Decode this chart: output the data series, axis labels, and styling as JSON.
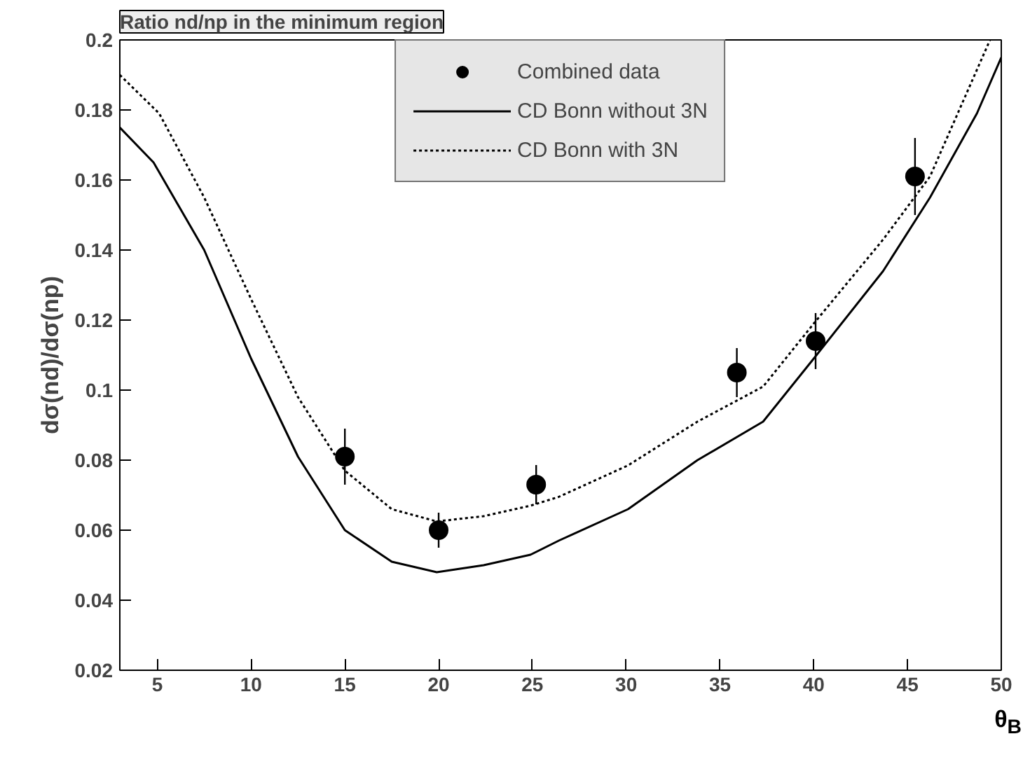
{
  "chart_data": {
    "type": "scatter",
    "title": "Ratio nd/np in the minimum region",
    "xlabel": "θ$_{B}$",
    "ylabel": "dσ(nd)/dσ(np)",
    "xlim": [
      3,
      50
    ],
    "ylim": [
      0.02,
      0.2
    ],
    "xticks": [
      5,
      10,
      15,
      20,
      25,
      30,
      35,
      40,
      45,
      50
    ],
    "yticks": [
      0.02,
      0.04,
      0.06,
      0.08,
      0.1,
      0.12,
      0.14,
      0.16,
      0.18,
      0.2
    ],
    "grid": false,
    "legend": "top",
    "series": [
      {
        "name": "Combined data",
        "type": "scatter",
        "marker": "circle",
        "color": "#000000",
        "x": [
          15,
          20,
          25.2,
          35.9,
          40.1,
          45.4
        ],
        "values": [
          0.081,
          0.06,
          0.073,
          0.105,
          0.114,
          0.161
        ],
        "errors": [
          0.008,
          0.005,
          0.0056,
          0.007,
          0.008,
          0.011
        ]
      },
      {
        "name": "CD Bonn without 3N",
        "type": "line",
        "line_style": "solid",
        "color": "#000000",
        "x": [
          3,
          4.8,
          7.5,
          10,
          12.5,
          15,
          17.5,
          19.9,
          22.4,
          24.9,
          26.4,
          30.1,
          33.8,
          37.3,
          40,
          43.7,
          46.2,
          48.7,
          50
        ],
        "values": [
          0.175,
          0.165,
          0.14,
          0.109,
          0.081,
          0.06,
          0.051,
          0.048,
          0.05,
          0.053,
          0.057,
          0.066,
          0.08,
          0.091,
          0.109,
          0.134,
          0.155,
          0.179,
          0.195
        ]
      },
      {
        "name": "CD Bonn with 3N",
        "type": "line",
        "line_style": "dotted",
        "color": "#000000",
        "x": [
          3,
          5.1,
          7.5,
          10,
          12.5,
          15,
          17.5,
          19.9,
          22.4,
          24.9,
          26.4,
          30.1,
          33.8,
          37.3,
          40,
          43.7,
          46.2,
          49.4
        ],
        "values": [
          0.19,
          0.179,
          0.155,
          0.126,
          0.098,
          0.077,
          0.066,
          0.0625,
          0.064,
          0.067,
          0.0695,
          0.0785,
          0.091,
          0.101,
          0.119,
          0.143,
          0.161,
          0.2
        ]
      }
    ]
  }
}
